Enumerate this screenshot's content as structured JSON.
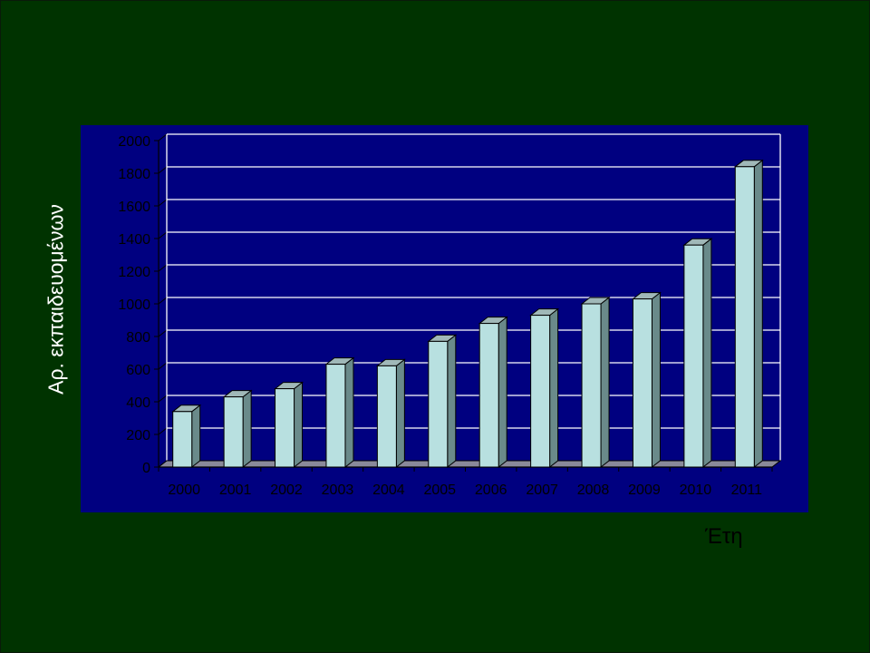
{
  "chart_data": {
    "type": "bar",
    "title": "",
    "xlabel": "Έτη",
    "ylabel": "Αρ. εκπαιδευομένων",
    "categories": [
      "2000",
      "2001",
      "2002",
      "2003",
      "2004",
      "2005",
      "2006",
      "2007",
      "2008",
      "2009",
      "2010",
      "2011"
    ],
    "values": [
      340,
      430,
      480,
      630,
      620,
      770,
      880,
      930,
      1000,
      1030,
      1360,
      1840
    ],
    "ylim": [
      0,
      2000
    ],
    "yticks": [
      "0",
      "200",
      "400",
      "600",
      "800",
      "1000",
      "1200",
      "1400",
      "1600",
      "1800",
      "2000"
    ],
    "grid": true,
    "colors": {
      "page_background": "#003300",
      "plot_background": "#000080",
      "bar_front": "#b8e0e0",
      "bar_side": "#6a8a8a",
      "bar_top": "#a0b8b8",
      "gridline": "#ffffff",
      "tick_text": "#000000"
    }
  }
}
